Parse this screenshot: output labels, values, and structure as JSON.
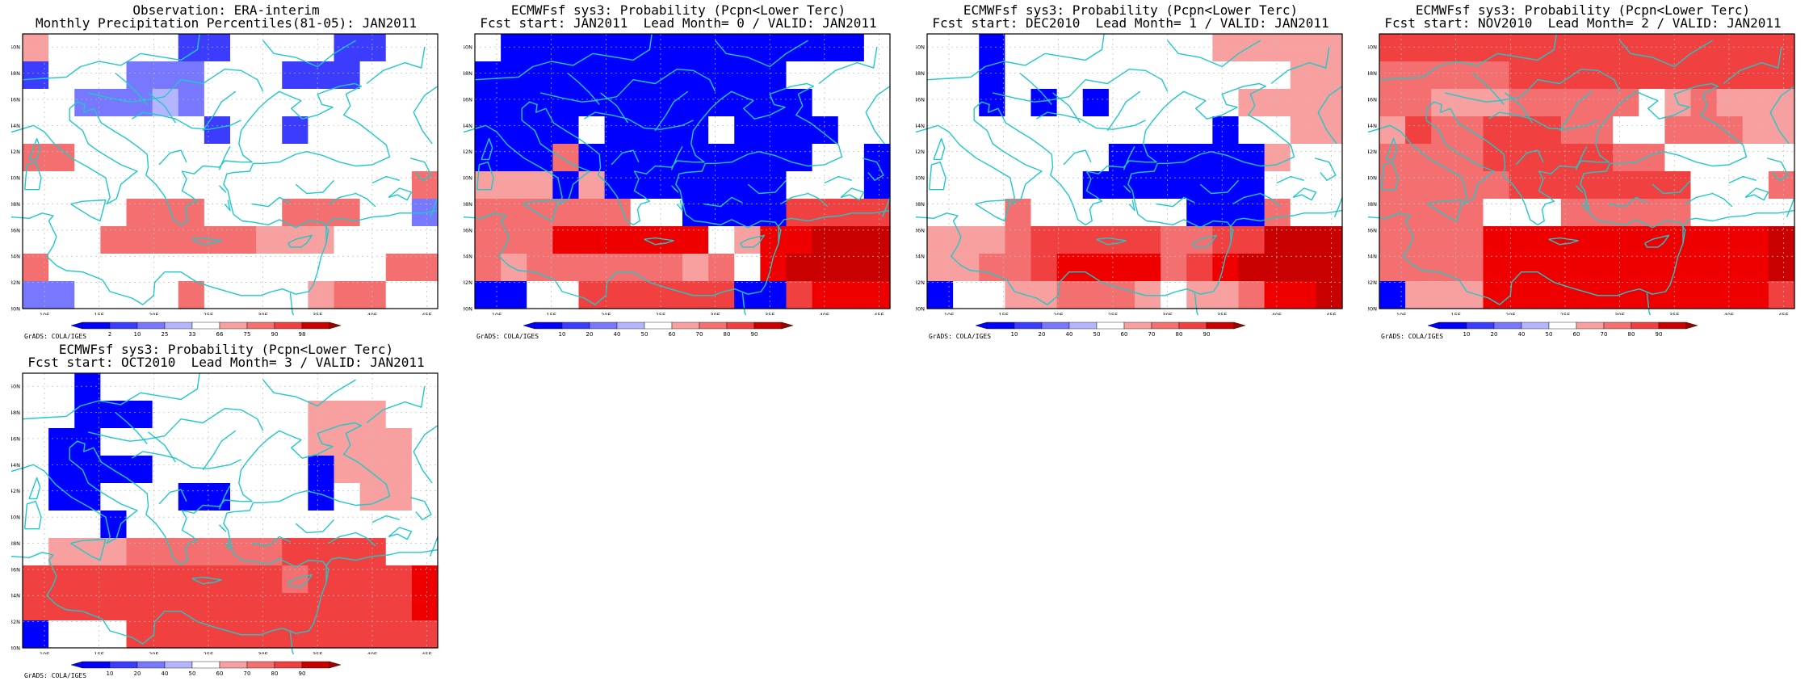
{
  "panels": [
    {
      "title1": "Observation: ERA-interim",
      "title2": "Monthly Precipitation Percentiles(81-05): JAN2011",
      "colorbar_labels": [
        "2",
        "10",
        "25",
        "33",
        "66",
        "75",
        "90",
        "98"
      ]
    },
    {
      "title1": "ECMWFsf sys3: Probability (Pcpn<Lower Terc)",
      "title2": "Fcst start: JAN2011  Lead Month= 0 / VALID: JAN2011",
      "colorbar_labels": [
        "10",
        "20",
        "40",
        "50",
        "60",
        "70",
        "80",
        "90"
      ]
    },
    {
      "title1": "ECMWFsf sys3: Probability (Pcpn<Lower Terc)",
      "title2": "Fcst start: DEC2010  Lead Month= 1 / VALID: JAN2011",
      "colorbar_labels": [
        "10",
        "20",
        "40",
        "50",
        "60",
        "70",
        "80",
        "90"
      ]
    },
    {
      "title1": "ECMWFsf sys3: Probability (Pcpn<Lower Terc)",
      "title2": "Fcst start: NOV2010  Lead Month= 2 / VALID: JAN2011",
      "colorbar_labels": [
        "10",
        "20",
        "40",
        "50",
        "60",
        "70",
        "80",
        "90"
      ]
    },
    {
      "title1": "ECMWFsf sys3: Probability (Pcpn<Lower Terc)",
      "title2": "Fcst start: OCT2010  Lead Month= 3 / VALID: JAN2011",
      "colorbar_labels": [
        "10",
        "20",
        "40",
        "50",
        "60",
        "70",
        "80",
        "90"
      ]
    }
  ],
  "lon_labels": [
    "10E",
    "15E",
    "20E",
    "25E",
    "30E",
    "35E",
    "40E",
    "45E"
  ],
  "lat_labels": [
    "30N",
    "32N",
    "34N",
    "36N",
    "38N",
    "40N",
    "42N",
    "44N",
    "46N",
    "48N",
    "50N"
  ],
  "credit": "GrADS: COLA/IGES",
  "colors": {
    "palette": [
      "#0000ff",
      "#3c3cff",
      "#7878ff",
      "#b4b4ff",
      "#ffffff",
      "#f8a0a0",
      "#f47070",
      "#f04040",
      "#ee0000",
      "#c80000",
      "#a00000"
    ],
    "coast": "#20c8c8",
    "grid": "#bbbbbb"
  }
}
